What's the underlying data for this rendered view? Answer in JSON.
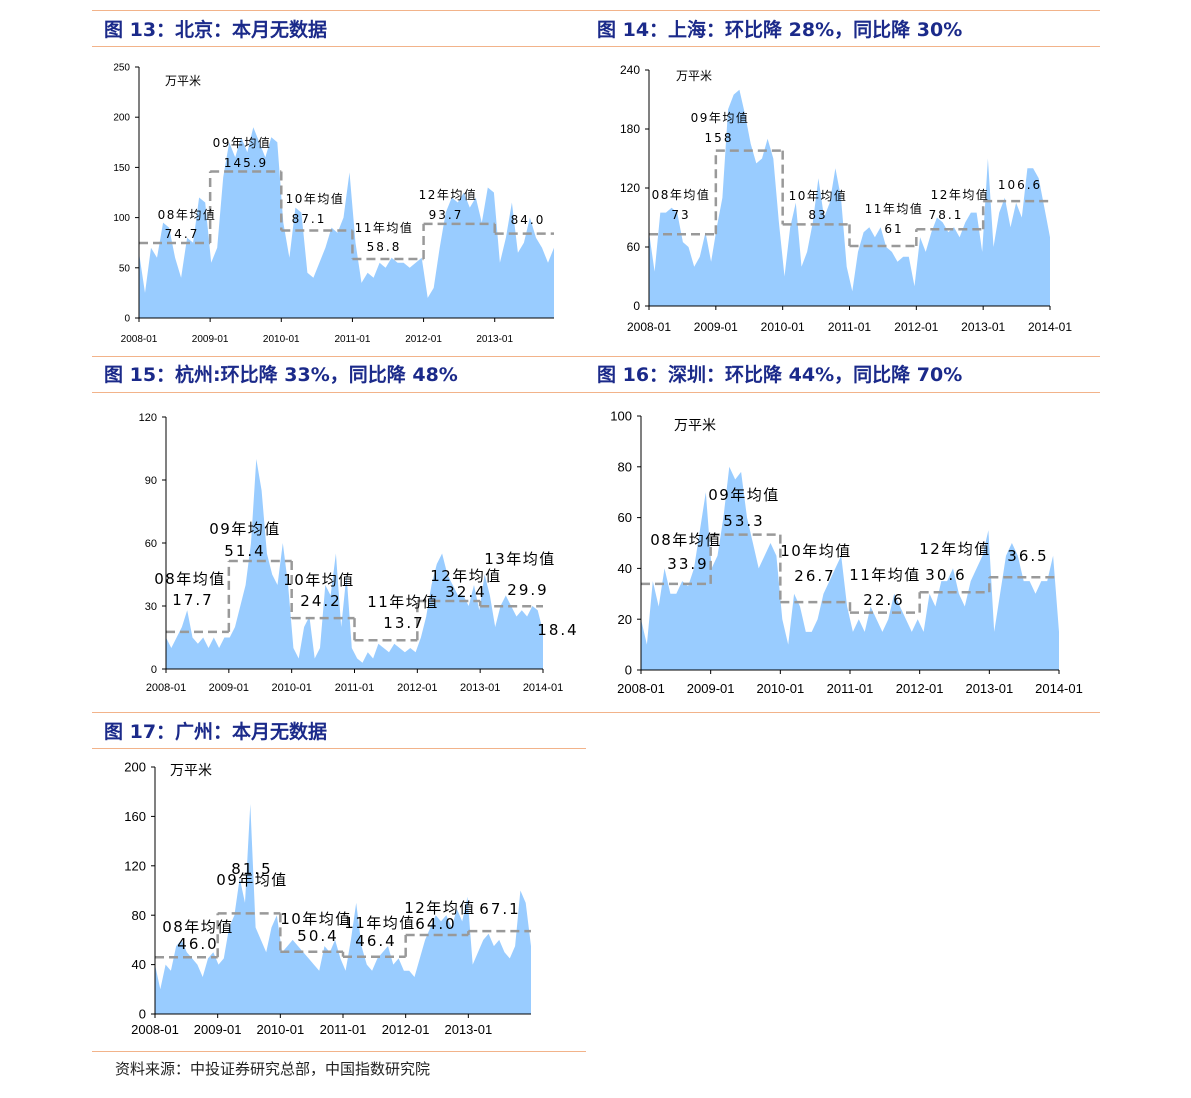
{
  "titles": {
    "t13": "图 13：北京：本月无数据",
    "t14": "图 14：上海：环比降 28%，同比降 30%",
    "t15": "图 15：杭州:环比降 33%，同比降 48%",
    "t16": "图 16：深圳：环比降 44%，同比降 70%",
    "t17": "图 17：广州：本月无数据"
  },
  "source": "资料来源：中投证券研究总部，中国指数研究院",
  "colors": {
    "area": "#99ccff",
    "avg_line": "#999999",
    "axis": "#000000",
    "title": "#1b2a8a",
    "rule": "#f2b38a"
  },
  "chart_data": [
    {
      "id": "beijing",
      "type": "area",
      "unit": "万平米",
      "ylim": [
        0,
        250
      ],
      "yticks": [
        "0",
        "50",
        "100",
        "150",
        "200",
        "250"
      ],
      "xlim": [
        0,
        70
      ],
      "xticks": [
        {
          "v": 0,
          "label": "2008-01"
        },
        {
          "v": 12,
          "label": "2009-01"
        },
        {
          "v": 24,
          "label": "2010-01"
        },
        {
          "v": 36,
          "label": "2011-01"
        },
        {
          "v": 48,
          "label": "2012-01"
        },
        {
          "v": 60,
          "label": "2013-01"
        }
      ],
      "values": [
        65,
        25,
        70,
        60,
        95,
        90,
        60,
        40,
        80,
        75,
        120,
        115,
        55,
        70,
        140,
        175,
        160,
        180,
        165,
        190,
        175,
        160,
        180,
        175,
        95,
        60,
        110,
        105,
        45,
        40,
        55,
        70,
        90,
        85,
        100,
        145,
        75,
        35,
        45,
        40,
        55,
        50,
        60,
        55,
        55,
        50,
        55,
        60,
        20,
        30,
        70,
        105,
        120,
        115,
        125,
        110,
        120,
        95,
        130,
        125,
        55,
        80,
        115,
        65,
        75,
        100,
        80,
        70,
        55,
        70
      ],
      "averages": [
        {
          "label": "08年均值",
          "value": 74.7,
          "display": "74.7",
          "start": 0,
          "end": 12
        },
        {
          "label": "09年均值",
          "value": 145.9,
          "display": "145.9",
          "start": 12,
          "end": 24
        },
        {
          "label": "10年均值",
          "value": 87.1,
          "display": "87.1",
          "start": 24,
          "end": 36
        },
        {
          "label": "11年均值",
          "value": 58.8,
          "display": "58.8",
          "start": 36,
          "end": 48
        },
        {
          "label": "12年均值",
          "value": 93.7,
          "display": "93.7",
          "start": 48,
          "end": 60
        },
        {
          "label": "",
          "value": 84.0,
          "display": "84.0",
          "start": 60,
          "end": 70
        }
      ]
    },
    {
      "id": "shanghai",
      "type": "area",
      "unit": "万平米",
      "ylim": [
        0,
        240
      ],
      "yticks": [
        "0",
        "60",
        "120",
        "180",
        "240"
      ],
      "xlim": [
        0,
        72
      ],
      "xticks": [
        {
          "v": 0,
          "label": "2008-01"
        },
        {
          "v": 12,
          "label": "2009-01"
        },
        {
          "v": 24,
          "label": "2010-01"
        },
        {
          "v": 36,
          "label": "2011-01"
        },
        {
          "v": 48,
          "label": "2012-01"
        },
        {
          "v": 60,
          "label": "2013-01"
        },
        {
          "v": 72,
          "label": "2014-01"
        }
      ],
      "values": [
        75,
        35,
        95,
        95,
        100,
        95,
        65,
        60,
        40,
        50,
        75,
        45,
        80,
        110,
        200,
        215,
        220,
        195,
        165,
        145,
        150,
        170,
        150,
        85,
        30,
        80,
        105,
        40,
        55,
        85,
        130,
        90,
        105,
        140,
        110,
        40,
        15,
        55,
        75,
        80,
        70,
        80,
        60,
        55,
        45,
        50,
        50,
        20,
        70,
        55,
        75,
        90,
        85,
        75,
        80,
        70,
        85,
        95,
        95,
        55,
        150,
        60,
        95,
        110,
        80,
        105,
        90,
        140,
        140,
        130,
        100,
        70
      ],
      "averages": [
        {
          "label": "08年均值",
          "value": 73,
          "display": "73",
          "start": 0,
          "end": 12
        },
        {
          "label": "09年均值",
          "value": 158,
          "display": "158",
          "start": 12,
          "end": 24
        },
        {
          "label": "10年均值",
          "value": 83,
          "display": "83",
          "start": 24,
          "end": 36
        },
        {
          "label": "11年均值",
          "value": 61,
          "display": "61",
          "start": 36,
          "end": 48
        },
        {
          "label": "12年均值",
          "value": 78.1,
          "display": "78.1",
          "start": 48,
          "end": 60
        },
        {
          "label": "",
          "value": 106.6,
          "display": "106.6",
          "start": 60,
          "end": 72
        }
      ]
    },
    {
      "id": "hangzhou",
      "type": "area",
      "unit": "",
      "ylim": [
        0,
        120
      ],
      "yticks": [
        "0",
        "30",
        "60",
        "90",
        "120"
      ],
      "xlim": [
        0,
        72
      ],
      "xticks": [
        {
          "v": 0,
          "label": "2008-01"
        },
        {
          "v": 12,
          "label": "2009-01"
        },
        {
          "v": 24,
          "label": "2010-01"
        },
        {
          "v": 36,
          "label": "2011-01"
        },
        {
          "v": 48,
          "label": "2012-01"
        },
        {
          "v": 60,
          "label": "2013-01"
        },
        {
          "v": 72,
          "label": "2014-01"
        }
      ],
      "values": [
        15,
        10,
        15,
        20,
        28,
        15,
        12,
        15,
        10,
        15,
        10,
        15,
        15,
        20,
        30,
        40,
        60,
        100,
        85,
        55,
        45,
        40,
        60,
        40,
        10,
        5,
        20,
        25,
        5,
        10,
        40,
        35,
        55,
        20,
        45,
        10,
        5,
        3,
        8,
        5,
        12,
        10,
        8,
        12,
        10,
        8,
        10,
        8,
        15,
        25,
        40,
        50,
        55,
        45,
        40,
        35,
        35,
        30,
        40,
        28,
        45,
        35,
        20,
        30,
        35,
        30,
        25,
        28,
        25,
        30,
        28,
        18
      ],
      "averages": [
        {
          "label": "08年均值",
          "value": 17.7,
          "display": "17.7",
          "start": 0,
          "end": 12
        },
        {
          "label": "09年均值",
          "value": 51.4,
          "display": "51.4",
          "start": 12,
          "end": 24
        },
        {
          "label": "10年均值",
          "value": 24.2,
          "display": "24.2",
          "start": 24,
          "end": 36
        },
        {
          "label": "11年均值",
          "value": 13.7,
          "display": "13.7",
          "start": 36,
          "end": 48
        },
        {
          "label": "12年均值",
          "value": 32.4,
          "display": "32.4",
          "start": 48,
          "end": 60
        },
        {
          "label": "13年均值",
          "value": 29.9,
          "display": "29.9",
          "start": 60,
          "end": 72
        },
        {
          "label": "",
          "value": 18.4,
          "display": "18.4",
          "start": 72,
          "end": 72
        }
      ]
    },
    {
      "id": "shenzhen",
      "type": "area",
      "unit": "万平米",
      "ylim": [
        0,
        100
      ],
      "yticks": [
        "0",
        "20",
        "40",
        "60",
        "80",
        "100"
      ],
      "xlim": [
        0,
        72
      ],
      "xticks": [
        {
          "v": 0,
          "label": "2008-01"
        },
        {
          "v": 12,
          "label": "2009-01"
        },
        {
          "v": 24,
          "label": "2010-01"
        },
        {
          "v": 36,
          "label": "2011-01"
        },
        {
          "v": 48,
          "label": "2012-01"
        },
        {
          "v": 60,
          "label": "2013-01"
        },
        {
          "v": 72,
          "label": "2014-01"
        }
      ],
      "values": [
        20,
        10,
        35,
        25,
        40,
        30,
        30,
        35,
        33,
        40,
        55,
        70,
        40,
        45,
        60,
        80,
        75,
        78,
        60,
        50,
        40,
        45,
        50,
        45,
        20,
        10,
        30,
        25,
        15,
        15,
        20,
        30,
        35,
        40,
        45,
        25,
        15,
        20,
        15,
        25,
        20,
        15,
        20,
        30,
        25,
        20,
        15,
        20,
        15,
        30,
        25,
        35,
        35,
        40,
        30,
        25,
        35,
        40,
        45,
        55,
        15,
        30,
        45,
        50,
        45,
        35,
        35,
        30,
        35,
        35,
        45,
        15
      ],
      "averages": [
        {
          "label": "08年均值",
          "value": 33.9,
          "display": "33.9",
          "start": 0,
          "end": 12
        },
        {
          "label": "09年均值",
          "value": 53.3,
          "display": "53.3",
          "start": 12,
          "end": 24
        },
        {
          "label": "10年均值",
          "value": 26.7,
          "display": "26.7",
          "start": 24,
          "end": 36
        },
        {
          "label": "11年均值",
          "value": 22.6,
          "display": "22.6",
          "start": 36,
          "end": 48
        },
        {
          "label": "12年均值",
          "value": 30.6,
          "display": "30.6",
          "start": 48,
          "end": 60
        },
        {
          "label": "",
          "value": 36.5,
          "display": "36.5",
          "start": 60,
          "end": 72
        }
      ]
    },
    {
      "id": "guangzhou",
      "type": "area",
      "unit": "万平米",
      "ylim": [
        0,
        200
      ],
      "yticks": [
        "0",
        "40",
        "80",
        "120",
        "160",
        "200"
      ],
      "xlim": [
        0,
        72
      ],
      "xticks": [
        {
          "v": 0,
          "label": "2008-01"
        },
        {
          "v": 12,
          "label": "2009-01"
        },
        {
          "v": 24,
          "label": "2010-01"
        },
        {
          "v": 36,
          "label": "2011-01"
        },
        {
          "v": 48,
          "label": "2012-01"
        },
        {
          "v": 60,
          "label": "2013-01"
        }
      ],
      "values": [
        40,
        20,
        40,
        35,
        55,
        60,
        50,
        45,
        40,
        30,
        45,
        50,
        40,
        45,
        70,
        80,
        110,
        90,
        170,
        70,
        60,
        50,
        70,
        80,
        50,
        55,
        60,
        55,
        50,
        45,
        40,
        35,
        55,
        50,
        60,
        45,
        35,
        60,
        90,
        55,
        40,
        35,
        45,
        50,
        55,
        40,
        45,
        35,
        35,
        30,
        45,
        60,
        70,
        80,
        75,
        80,
        70,
        85,
        75,
        95,
        40,
        50,
        60,
        65,
        55,
        60,
        50,
        45,
        55,
        100,
        90,
        55
      ],
      "averages": [
        {
          "label": "08年均值",
          "value": 46.0,
          "display": "46.0",
          "start": 0,
          "end": 12
        },
        {
          "label": "09年均值",
          "value": 81.5,
          "display": "81.5",
          "start": 12,
          "end": 24
        },
        {
          "label": "10年均值",
          "value": 50.4,
          "display": "50.4",
          "start": 24,
          "end": 36
        },
        {
          "label": "11年均值",
          "value": 46.4,
          "display": "46.4",
          "start": 36,
          "end": 48
        },
        {
          "label": "12年均值",
          "value": 64.0,
          "display": "64.0",
          "start": 48,
          "end": 60
        },
        {
          "label": "",
          "value": 67.1,
          "display": "67.1",
          "start": 60,
          "end": 72
        }
      ]
    }
  ]
}
